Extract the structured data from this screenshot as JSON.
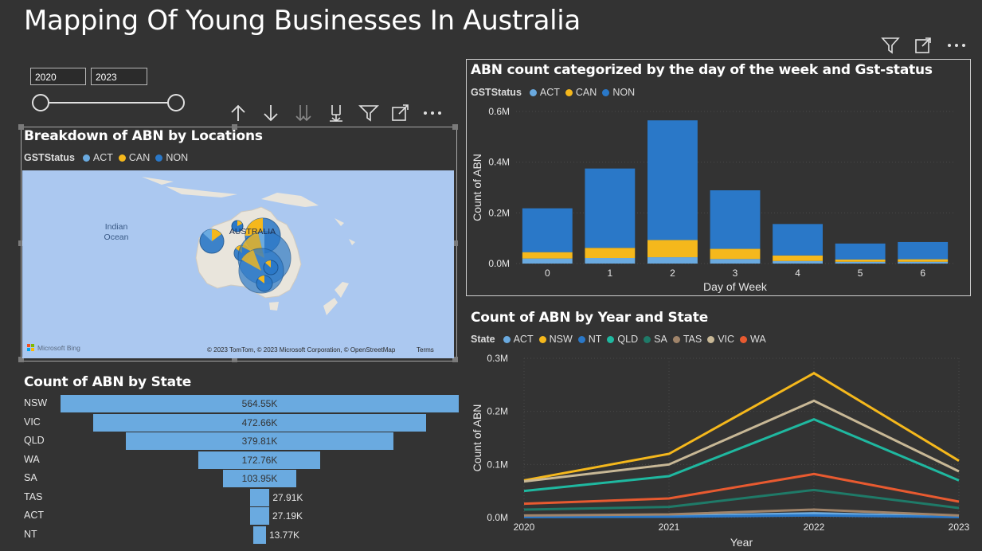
{
  "page_title": "Mapping Of Young Businesses In Australia",
  "top_icons": [
    "filter-icon",
    "focus-mode-icon",
    "more-options-icon"
  ],
  "slicer": {
    "start": "2020",
    "end": "2023"
  },
  "map_toolbar": [
    "drill-up-icon",
    "drill-down-icon",
    "expand-all-down-icon",
    "expand-next-level-icon",
    "filter-icon",
    "focus-mode-icon",
    "more-options-icon"
  ],
  "map": {
    "title": "Breakdown of ABN by Locations",
    "legend_title": "GSTStatus",
    "legend": [
      {
        "label": "ACT",
        "color": "#6aaae0"
      },
      {
        "label": "CAN",
        "color": "#f5b81c"
      },
      {
        "label": "NON",
        "color": "#2a78c8"
      }
    ],
    "ocean_label_1": "Indian",
    "ocean_label_2": "Ocean",
    "country_label": "AUSTRALIA",
    "bing": "Microsoft Bing",
    "attribution": "© 2023 TomTom, © 2023 Microsoft Corporation, © OpenStreetMap",
    "terms": "Terms"
  },
  "funnel": {
    "title": "Count of ABN by State",
    "items": [
      {
        "label": "NSW",
        "value": 564.55,
        "text": "564.55K"
      },
      {
        "label": "VIC",
        "value": 472.66,
        "text": "472.66K"
      },
      {
        "label": "QLD",
        "value": 379.81,
        "text": "379.81K"
      },
      {
        "label": "WA",
        "value": 172.76,
        "text": "172.76K"
      },
      {
        "label": "SA",
        "value": 103.95,
        "text": "103.95K"
      },
      {
        "label": "TAS",
        "value": 27.91,
        "text": "27.91K"
      },
      {
        "label": "ACT",
        "value": 27.19,
        "text": "27.19K"
      },
      {
        "label": "NT",
        "value": 13.77,
        "text": "13.77K"
      }
    ]
  },
  "chart_data": [
    {
      "type": "bar",
      "title": "ABN count categorized by the day of the week and Gst-status",
      "legend_title": "GSTStatus",
      "categories": [
        "0",
        "1",
        "2",
        "3",
        "4",
        "5",
        "6"
      ],
      "series": [
        {
          "name": "ACT",
          "color": "#6aaae0",
          "values": [
            20000,
            22000,
            25000,
            18000,
            10000,
            7000,
            7000
          ]
        },
        {
          "name": "CAN",
          "color": "#f5b81c",
          "values": [
            25000,
            40000,
            68000,
            40000,
            22000,
            9000,
            10000
          ]
        },
        {
          "name": "NON",
          "color": "#2a78c8",
          "values": [
            173000,
            313000,
            472000,
            231000,
            124000,
            63000,
            68000
          ]
        }
      ],
      "xlabel": "Day of Week",
      "ylabel": "Count of ABN",
      "yticks": [
        "0.0M",
        "0.2M",
        "0.4M",
        "0.6M"
      ],
      "ylim": [
        0,
        600000
      ]
    },
    {
      "type": "line",
      "title": "Count of ABN by Year and State",
      "legend_title": "State",
      "x": [
        "2020",
        "2021",
        "2022",
        "2023"
      ],
      "series": [
        {
          "name": "ACT",
          "color": "#6aaae0",
          "values": [
            2000,
            3000,
            8000,
            2000
          ]
        },
        {
          "name": "NSW",
          "color": "#f5b81c",
          "values": [
            70000,
            120000,
            272000,
            107000
          ]
        },
        {
          "name": "NT",
          "color": "#2a78c8",
          "values": [
            1000,
            1500,
            4000,
            1000
          ]
        },
        {
          "name": "QLD",
          "color": "#1fb8a0",
          "values": [
            50000,
            78000,
            185000,
            70000
          ]
        },
        {
          "name": "SA",
          "color": "#1f7a68",
          "values": [
            15000,
            20000,
            52000,
            18000
          ]
        },
        {
          "name": "TAS",
          "color": "#a0846a",
          "values": [
            4000,
            6000,
            15000,
            4000
          ]
        },
        {
          "name": "VIC",
          "color": "#c8b896",
          "values": [
            68000,
            100000,
            220000,
            87000
          ]
        },
        {
          "name": "WA",
          "color": "#e85a30",
          "values": [
            26000,
            36000,
            82000,
            30000
          ]
        }
      ],
      "xlabel": "Year",
      "ylabel": "Count of ABN",
      "yticks": [
        "0.0M",
        "0.1M",
        "0.2M",
        "0.3M"
      ],
      "ylim": [
        0,
        300000
      ]
    }
  ]
}
